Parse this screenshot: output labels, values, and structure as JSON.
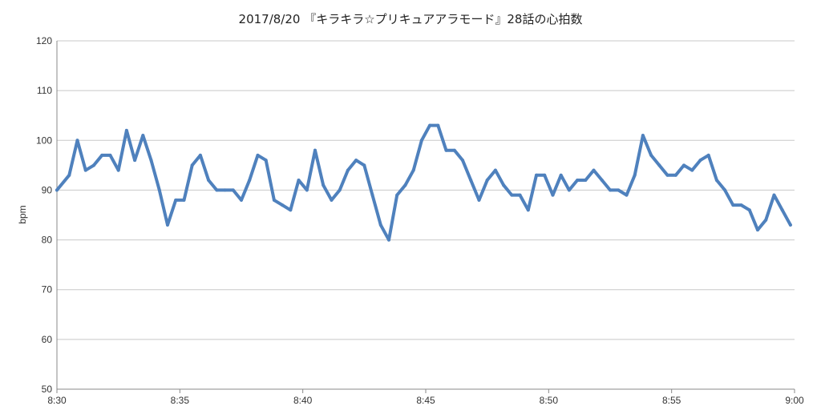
{
  "chart_data": {
    "type": "line",
    "title": "2017/8/20 『キラキラ☆プリキュアアラモード』28話の心拍数",
    "xlabel": "",
    "ylabel": "bpm",
    "x_tick_labels": [
      "8:30",
      "8:35",
      "8:40",
      "8:45",
      "8:50",
      "8:55",
      "9:00"
    ],
    "xlim": [
      0,
      30
    ],
    "ylim": [
      50,
      120
    ],
    "y_ticks": [
      50,
      60,
      70,
      80,
      90,
      100,
      110,
      120
    ],
    "grid": true,
    "legend": "none",
    "colors": {
      "line": "#4f81bd",
      "grid": "#c8c8c8"
    },
    "series": [
      {
        "x": [
          0,
          0.5,
          0.833,
          1.167,
          1.5,
          1.833,
          2.167,
          2.5,
          2.833,
          3.167,
          3.5,
          3.833,
          4.167,
          4.5,
          4.833,
          5.167,
          5.5,
          5.833,
          6.167,
          6.5,
          6.833,
          7.167,
          7.5,
          7.833,
          8.167,
          8.5,
          8.833,
          9.167,
          9.5,
          9.833,
          10.167,
          10.5,
          10.833,
          11.167,
          11.5,
          11.833,
          12.167,
          12.5,
          12.833,
          13.167,
          13.5,
          13.833,
          14.167,
          14.5,
          14.833,
          15.167,
          15.5,
          15.833,
          16.167,
          16.5,
          16.833,
          17.167,
          17.5,
          17.833,
          18.167,
          18.5,
          18.833,
          19.167,
          19.5,
          19.833,
          20.167,
          20.5,
          20.833,
          21.167,
          21.5,
          21.833,
          22.167,
          22.5,
          22.833,
          23.167,
          23.5,
          23.833,
          24.167,
          24.5,
          24.833,
          25.167,
          25.5,
          25.833,
          26.167,
          26.5,
          26.833,
          27.167,
          27.5,
          27.833,
          28.167,
          28.5,
          28.833,
          29.167,
          29.5,
          29.833
        ],
        "values": [
          90,
          93,
          100,
          94,
          95,
          97,
          97,
          94,
          102,
          96,
          101,
          96,
          90,
          83,
          88,
          88,
          95,
          97,
          92,
          90,
          90,
          90,
          88,
          92,
          97,
          96,
          88,
          87,
          86,
          92,
          90,
          98,
          91,
          88,
          90,
          94,
          96,
          95,
          89,
          83,
          80,
          89,
          91,
          94,
          100,
          103,
          103,
          98,
          98,
          96,
          92,
          88,
          92,
          94,
          91,
          89,
          89,
          86,
          93,
          93,
          89,
          93,
          90,
          92,
          92,
          94,
          92,
          90,
          90,
          89,
          93,
          101,
          97,
          95,
          93,
          93,
          95,
          94,
          96,
          97,
          92,
          90,
          87,
          87,
          86,
          82,
          84,
          89,
          86,
          83
        ]
      }
    ]
  }
}
